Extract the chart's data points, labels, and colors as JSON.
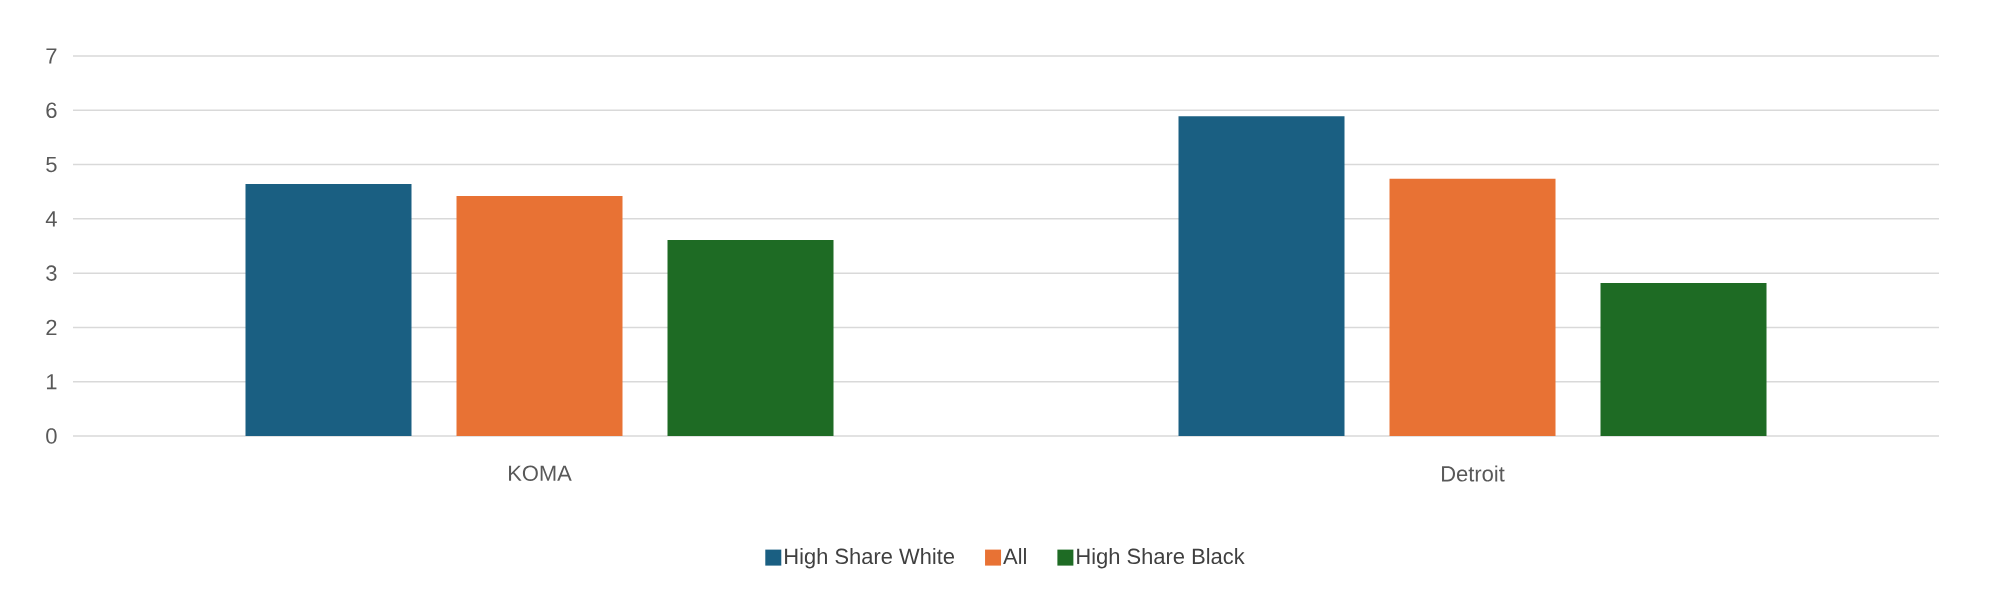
{
  "chart_data": {
    "type": "bar",
    "categories": [
      "KOMA",
      "Detroit"
    ],
    "series": [
      {
        "name": "High Share White",
        "color": "#1a5f82",
        "values": [
          4.64,
          5.89
        ]
      },
      {
        "name": "All",
        "color": "#e87234",
        "values": [
          4.42,
          4.74
        ]
      },
      {
        "name": "High Share Black",
        "color": "#1e6b24",
        "values": [
          3.61,
          2.82
        ]
      }
    ],
    "ylim": [
      0,
      7
    ],
    "yticks": [
      0,
      1,
      2,
      3,
      4,
      5,
      6,
      7
    ],
    "grid": "y",
    "legend": "bottom"
  }
}
